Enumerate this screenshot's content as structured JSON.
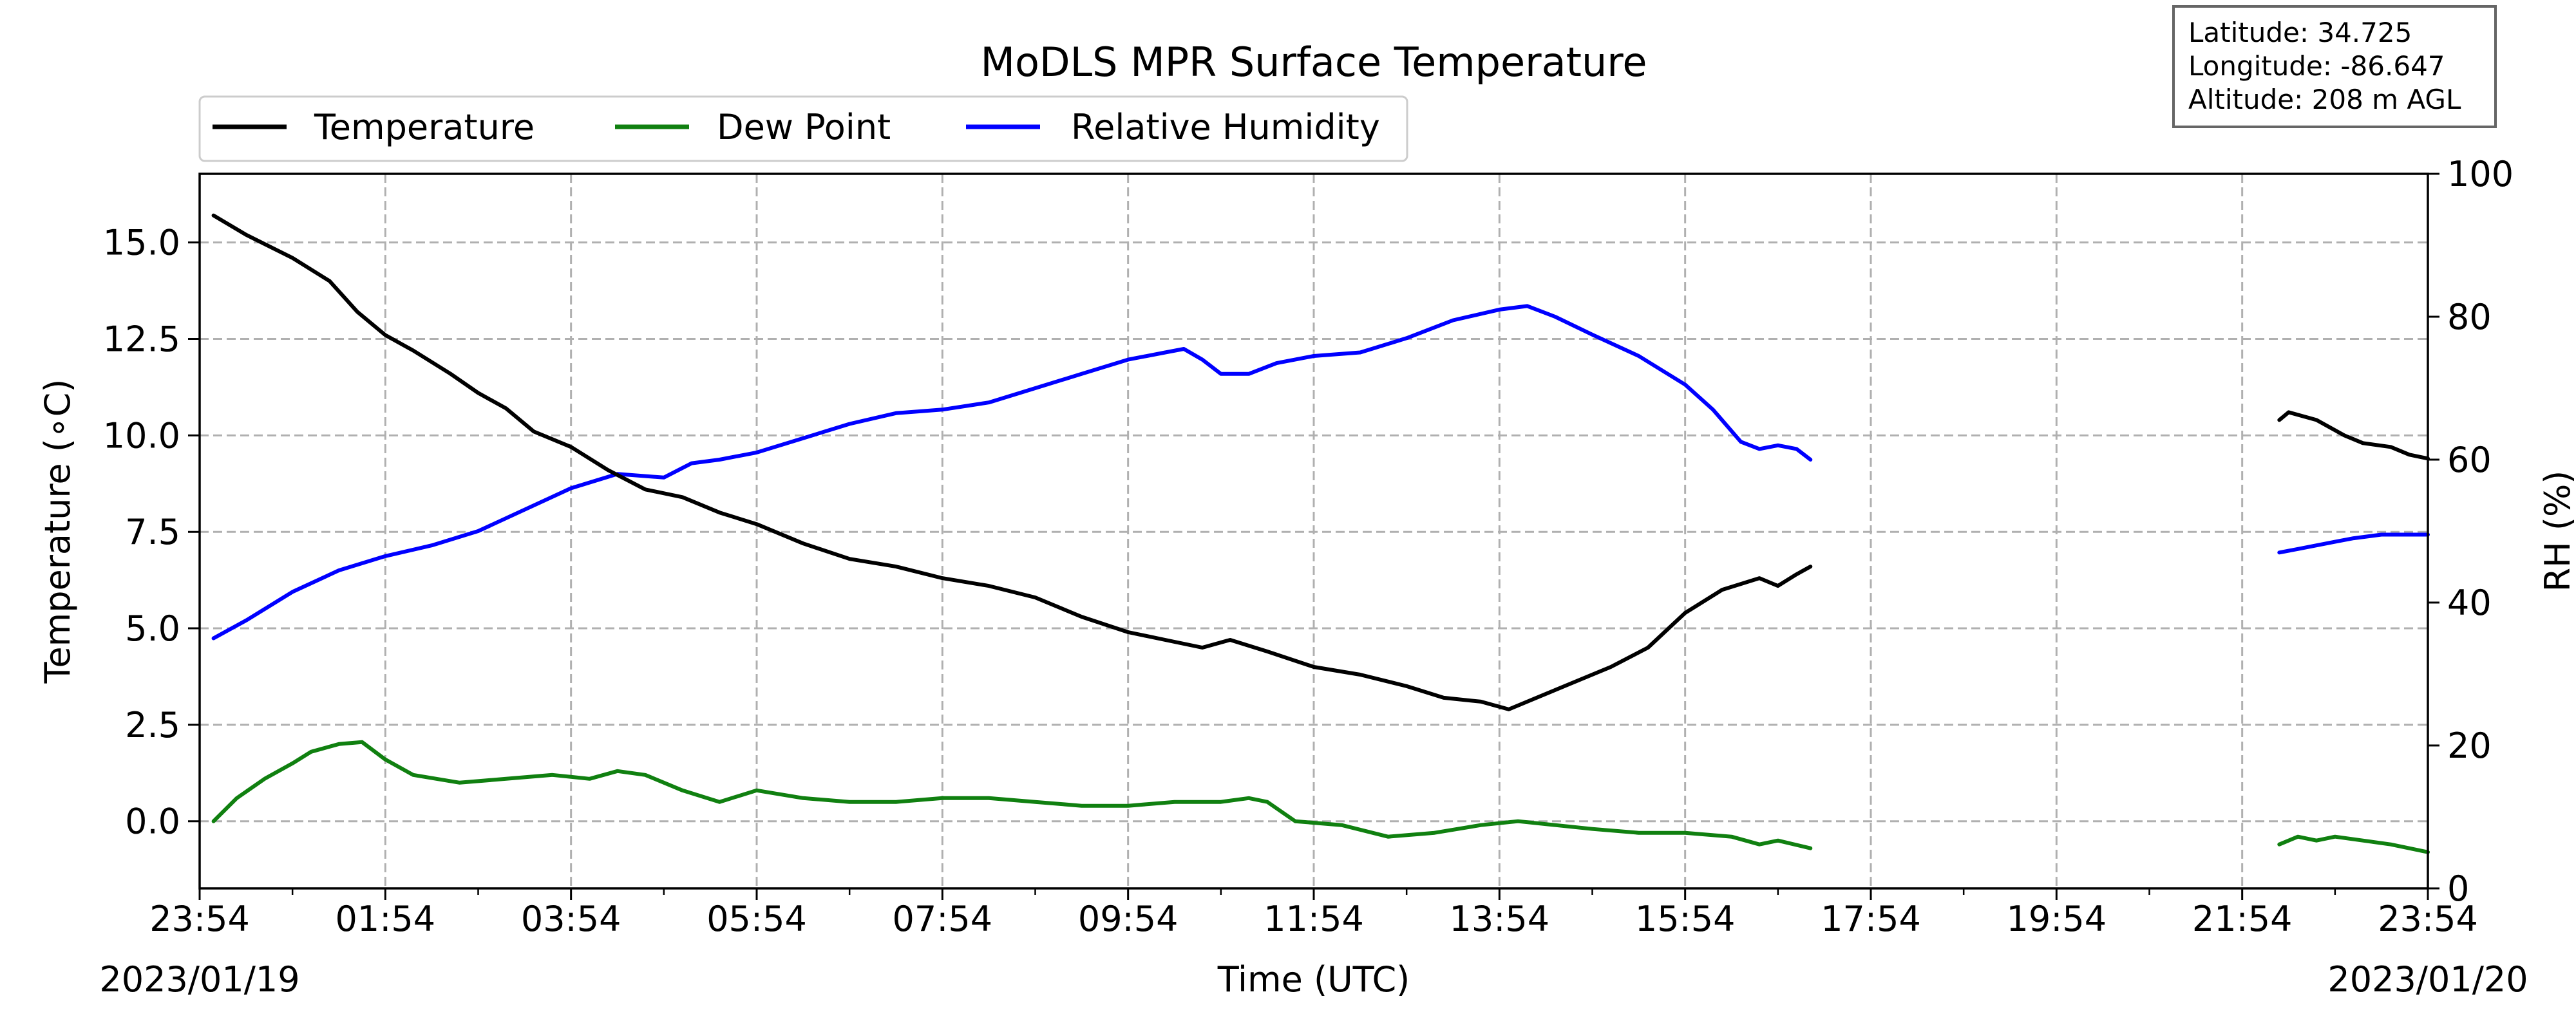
{
  "chart_data": {
    "type": "line",
    "title": "MoDLS MPR Surface Temperature",
    "xlabel": "Time (UTC)",
    "ylabel": "Temperature (∘C)",
    "ylabel_right": "RH (%)",
    "x_ticks": [
      "23:54",
      "01:54",
      "03:54",
      "05:54",
      "07:54",
      "09:54",
      "11:54",
      "13:54",
      "15:54",
      "17:54",
      "19:54",
      "21:54",
      "23:54"
    ],
    "date_start": "2023/01/19",
    "date_end": "2023/01/20",
    "x_range_hours": [
      0,
      24
    ],
    "y_left_ticks": [
      "0.0",
      "2.5",
      "5.0",
      "7.5",
      "10.0",
      "12.5",
      "15.0"
    ],
    "y_left_range": [
      -1.74,
      16.78
    ],
    "y_right_ticks": [
      "0",
      "20",
      "40",
      "60",
      "80",
      "100"
    ],
    "y_right_range": [
      0,
      100
    ],
    "grid": true,
    "legend_placement": "top-left, above plot",
    "info_box": [
      "Latitude: 34.725",
      "Longitude: -86.647",
      "Altitude: 208 m AGL"
    ],
    "series": [
      {
        "name": "Temperature",
        "color": "#000000",
        "axis": "left",
        "segments": [
          [
            [
              0.15,
              15.7
            ],
            [
              0.5,
              15.2
            ],
            [
              1.0,
              14.6
            ],
            [
              1.4,
              14.0
            ],
            [
              1.7,
              13.2
            ],
            [
              2.0,
              12.6
            ],
            [
              2.3,
              12.2
            ],
            [
              2.7,
              11.6
            ],
            [
              3.0,
              11.1
            ],
            [
              3.3,
              10.7
            ],
            [
              3.6,
              10.1
            ],
            [
              4.0,
              9.7
            ],
            [
              4.4,
              9.1
            ],
            [
              4.8,
              8.6
            ],
            [
              5.2,
              8.4
            ],
            [
              5.6,
              8.0
            ],
            [
              6.0,
              7.7
            ],
            [
              6.5,
              7.2
            ],
            [
              7.0,
              6.8
            ],
            [
              7.5,
              6.6
            ],
            [
              8.0,
              6.3
            ],
            [
              8.5,
              6.1
            ],
            [
              9.0,
              5.8
            ],
            [
              9.5,
              5.3
            ],
            [
              10.0,
              4.9
            ],
            [
              10.4,
              4.7
            ],
            [
              10.8,
              4.5
            ],
            [
              11.1,
              4.7
            ],
            [
              11.5,
              4.4
            ],
            [
              12.0,
              4.0
            ],
            [
              12.5,
              3.8
            ],
            [
              13.0,
              3.5
            ],
            [
              13.4,
              3.2
            ],
            [
              13.8,
              3.1
            ],
            [
              14.1,
              2.9
            ],
            [
              14.4,
              3.2
            ],
            [
              14.8,
              3.6
            ],
            [
              15.2,
              4.0
            ],
            [
              15.6,
              4.5
            ],
            [
              16.0,
              5.4
            ],
            [
              16.4,
              6.0
            ],
            [
              16.8,
              6.3
            ],
            [
              17.0,
              6.1
            ],
            [
              17.2,
              6.4
            ],
            [
              17.35,
              6.6
            ]
          ],
          [
            [
              22.4,
              10.4
            ],
            [
              22.5,
              10.6
            ],
            [
              22.8,
              10.4
            ],
            [
              23.1,
              10.0
            ],
            [
              23.3,
              9.8
            ],
            [
              23.6,
              9.7
            ],
            [
              23.8,
              9.5
            ],
            [
              24.0,
              9.4
            ]
          ]
        ]
      },
      {
        "name": "Dew Point",
        "color": "#108010",
        "axis": "left",
        "segments": [
          [
            [
              0.15,
              0.0
            ],
            [
              0.4,
              0.6
            ],
            [
              0.7,
              1.1
            ],
            [
              1.0,
              1.5
            ],
            [
              1.2,
              1.8
            ],
            [
              1.5,
              2.0
            ],
            [
              1.75,
              2.05
            ],
            [
              2.0,
              1.6
            ],
            [
              2.3,
              1.2
            ],
            [
              2.8,
              1.0
            ],
            [
              3.3,
              1.1
            ],
            [
              3.8,
              1.2
            ],
            [
              4.2,
              1.1
            ],
            [
              4.5,
              1.3
            ],
            [
              4.8,
              1.2
            ],
            [
              5.2,
              0.8
            ],
            [
              5.6,
              0.5
            ],
            [
              6.0,
              0.8
            ],
            [
              6.5,
              0.6
            ],
            [
              7.0,
              0.5
            ],
            [
              7.5,
              0.5
            ],
            [
              8.0,
              0.6
            ],
            [
              8.5,
              0.6
            ],
            [
              9.0,
              0.5
            ],
            [
              9.5,
              0.4
            ],
            [
              10.0,
              0.4
            ],
            [
              10.5,
              0.5
            ],
            [
              11.0,
              0.5
            ],
            [
              11.3,
              0.6
            ],
            [
              11.5,
              0.5
            ],
            [
              11.8,
              0.0
            ],
            [
              12.3,
              -0.1
            ],
            [
              12.8,
              -0.4
            ],
            [
              13.3,
              -0.3
            ],
            [
              13.8,
              -0.1
            ],
            [
              14.2,
              0.0
            ],
            [
              14.6,
              -0.1
            ],
            [
              15.0,
              -0.2
            ],
            [
              15.5,
              -0.3
            ],
            [
              16.0,
              -0.3
            ],
            [
              16.5,
              -0.4
            ],
            [
              16.8,
              -0.6
            ],
            [
              17.0,
              -0.5
            ],
            [
              17.35,
              -0.7
            ]
          ],
          [
            [
              22.4,
              -0.6
            ],
            [
              22.6,
              -0.4
            ],
            [
              22.8,
              -0.5
            ],
            [
              23.0,
              -0.4
            ],
            [
              23.3,
              -0.5
            ],
            [
              23.6,
              -0.6
            ],
            [
              24.0,
              -0.8
            ]
          ]
        ]
      },
      {
        "name": "Relative Humidity",
        "color": "#0000ff",
        "axis": "right",
        "segments": [
          [
            [
              0.15,
              35.0
            ],
            [
              0.5,
              37.5
            ],
            [
              1.0,
              41.5
            ],
            [
              1.5,
              44.5
            ],
            [
              2.0,
              46.5
            ],
            [
              2.5,
              48.0
            ],
            [
              3.0,
              50.0
            ],
            [
              3.5,
              53.0
            ],
            [
              4.0,
              56.0
            ],
            [
              4.5,
              58.0
            ],
            [
              5.0,
              57.5
            ],
            [
              5.3,
              59.5
            ],
            [
              5.6,
              60.0
            ],
            [
              6.0,
              61.0
            ],
            [
              6.5,
              63.0
            ],
            [
              7.0,
              65.0
            ],
            [
              7.5,
              66.5
            ],
            [
              8.0,
              67.0
            ],
            [
              8.5,
              68.0
            ],
            [
              9.0,
              70.0
            ],
            [
              9.5,
              72.0
            ],
            [
              10.0,
              74.0
            ],
            [
              10.4,
              75.0
            ],
            [
              10.6,
              75.5
            ],
            [
              10.8,
              74.0
            ],
            [
              11.0,
              72.0
            ],
            [
              11.3,
              72.0
            ],
            [
              11.6,
              73.5
            ],
            [
              12.0,
              74.5
            ],
            [
              12.5,
              75.0
            ],
            [
              13.0,
              77.0
            ],
            [
              13.5,
              79.5
            ],
            [
              14.0,
              81.0
            ],
            [
              14.3,
              81.5
            ],
            [
              14.6,
              80.0
            ],
            [
              15.0,
              77.5
            ],
            [
              15.5,
              74.5
            ],
            [
              16.0,
              70.5
            ],
            [
              16.3,
              67.0
            ],
            [
              16.6,
              62.5
            ],
            [
              16.8,
              61.5
            ],
            [
              17.0,
              62.0
            ],
            [
              17.2,
              61.5
            ],
            [
              17.35,
              60.0
            ]
          ],
          [
            [
              22.4,
              47.0
            ],
            [
              22.6,
              47.5
            ],
            [
              22.8,
              48.0
            ],
            [
              23.0,
              48.5
            ],
            [
              23.2,
              49.0
            ],
            [
              23.5,
              49.5
            ],
            [
              24.0,
              49.5
            ]
          ]
        ]
      }
    ]
  }
}
